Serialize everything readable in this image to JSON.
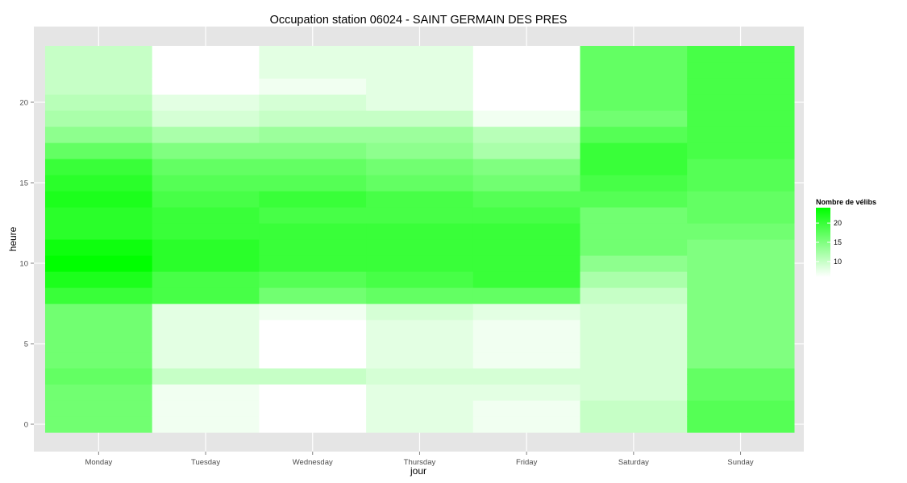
{
  "chart_data": {
    "type": "heatmap",
    "title": "Occupation station 06024 - SAINT GERMAIN DES PRES",
    "xlabel": "jour",
    "ylabel": "heure",
    "x_categories": [
      "Monday",
      "Tuesday",
      "Wednesday",
      "Thursday",
      "Friday",
      "Saturday",
      "Sunday"
    ],
    "y_range": [
      -0.5,
      23.5
    ],
    "y_ticks": [
      0,
      5,
      10,
      15,
      20
    ],
    "grid": true,
    "legend": {
      "title": "Nombre de vélibs",
      "placement": "right",
      "ticks": [
        10,
        15,
        20
      ],
      "range": [
        6,
        24
      ],
      "low_color": "#ffffff",
      "high_color": "#00ff00"
    },
    "series": [
      {
        "x": "Monday",
        "hours_0_to_23": [
          16,
          16,
          16,
          17,
          16,
          16,
          16,
          16,
          20,
          22,
          24,
          23,
          21,
          21,
          22,
          21,
          20,
          17,
          14,
          12,
          11,
          10,
          10,
          10
        ]
      },
      {
        "x": "Tuesday",
        "hours_0_to_23": [
          7,
          7,
          7,
          10,
          8,
          8,
          8,
          8,
          19,
          19,
          21,
          21,
          20,
          20,
          19,
          18,
          17,
          15,
          12,
          9,
          8,
          6,
          6,
          6
        ]
      },
      {
        "x": "Wednesday",
        "hours_0_to_23": [
          6,
          6,
          6,
          10,
          6,
          6,
          6,
          7,
          16,
          18,
          20,
          20,
          20,
          19,
          20,
          18,
          17,
          15,
          13,
          10,
          9,
          7,
          8,
          8
        ]
      },
      {
        "x": "Thursday",
        "hours_0_to_23": [
          8,
          8,
          8,
          9,
          8,
          8,
          8,
          9,
          17,
          19,
          20,
          20,
          20,
          19,
          19,
          17,
          16,
          14,
          13,
          10,
          8,
          8,
          8,
          8
        ]
      },
      {
        "x": "Friday",
        "hours_0_to_23": [
          7,
          7,
          8,
          9,
          7,
          7,
          7,
          8,
          17,
          20,
          20,
          20,
          20,
          19,
          18,
          16,
          15,
          12,
          11,
          7,
          6,
          6,
          6,
          6
        ]
      },
      {
        "x": "Saturday",
        "hours_0_to_23": [
          10,
          10,
          9,
          9,
          9,
          9,
          9,
          9,
          10,
          12,
          14,
          16,
          16,
          16,
          18,
          19,
          20,
          20,
          18,
          16,
          17,
          17,
          17,
          17
        ]
      },
      {
        "x": "Sunday",
        "hours_0_to_23": [
          18,
          18,
          17,
          17,
          15,
          15,
          15,
          15,
          15,
          15,
          15,
          15,
          16,
          17,
          17,
          18,
          18,
          19,
          19,
          19,
          19,
          19,
          19,
          19
        ]
      }
    ]
  }
}
